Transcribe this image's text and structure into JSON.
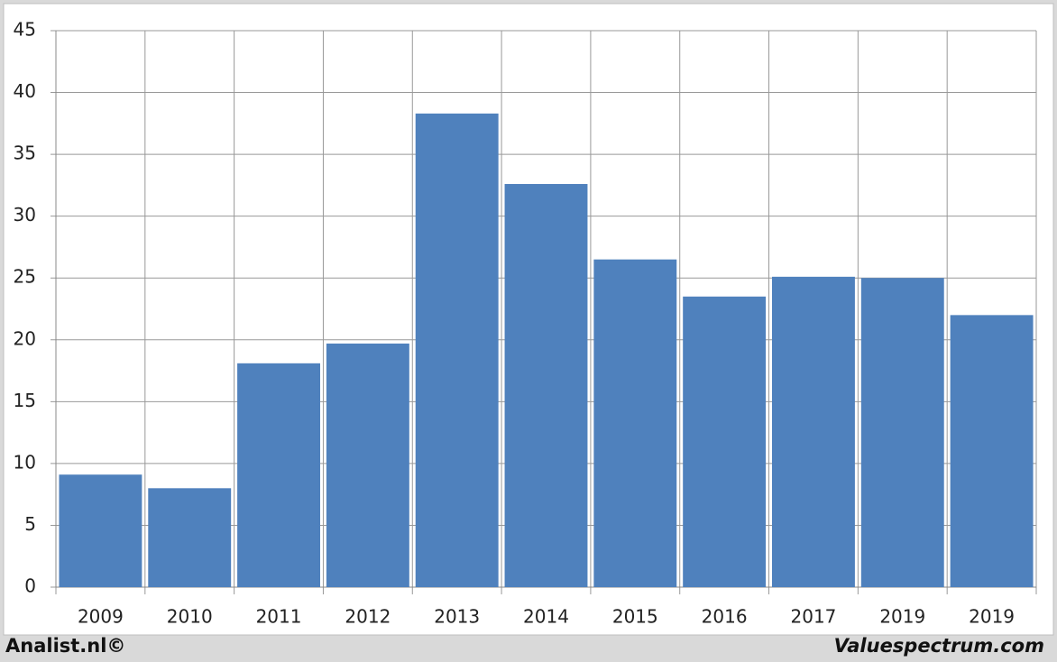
{
  "chart_data": {
    "type": "bar",
    "categories": [
      "2009",
      "2010",
      "2011",
      "2012",
      "2013",
      "2014",
      "2015",
      "2016",
      "2017",
      "2019",
      "2019"
    ],
    "values": [
      9.1,
      8.0,
      18.1,
      19.7,
      38.3,
      32.6,
      26.5,
      23.5,
      25.1,
      25.0,
      22.0
    ],
    "color": "#4f81bd",
    "ylim": [
      0,
      45
    ],
    "yticks": [
      0,
      5,
      10,
      15,
      20,
      25,
      30,
      35,
      40,
      45
    ],
    "grid": true
  },
  "footer": {
    "left": "Analist.nl©",
    "right": "Valuespectrum.com"
  }
}
